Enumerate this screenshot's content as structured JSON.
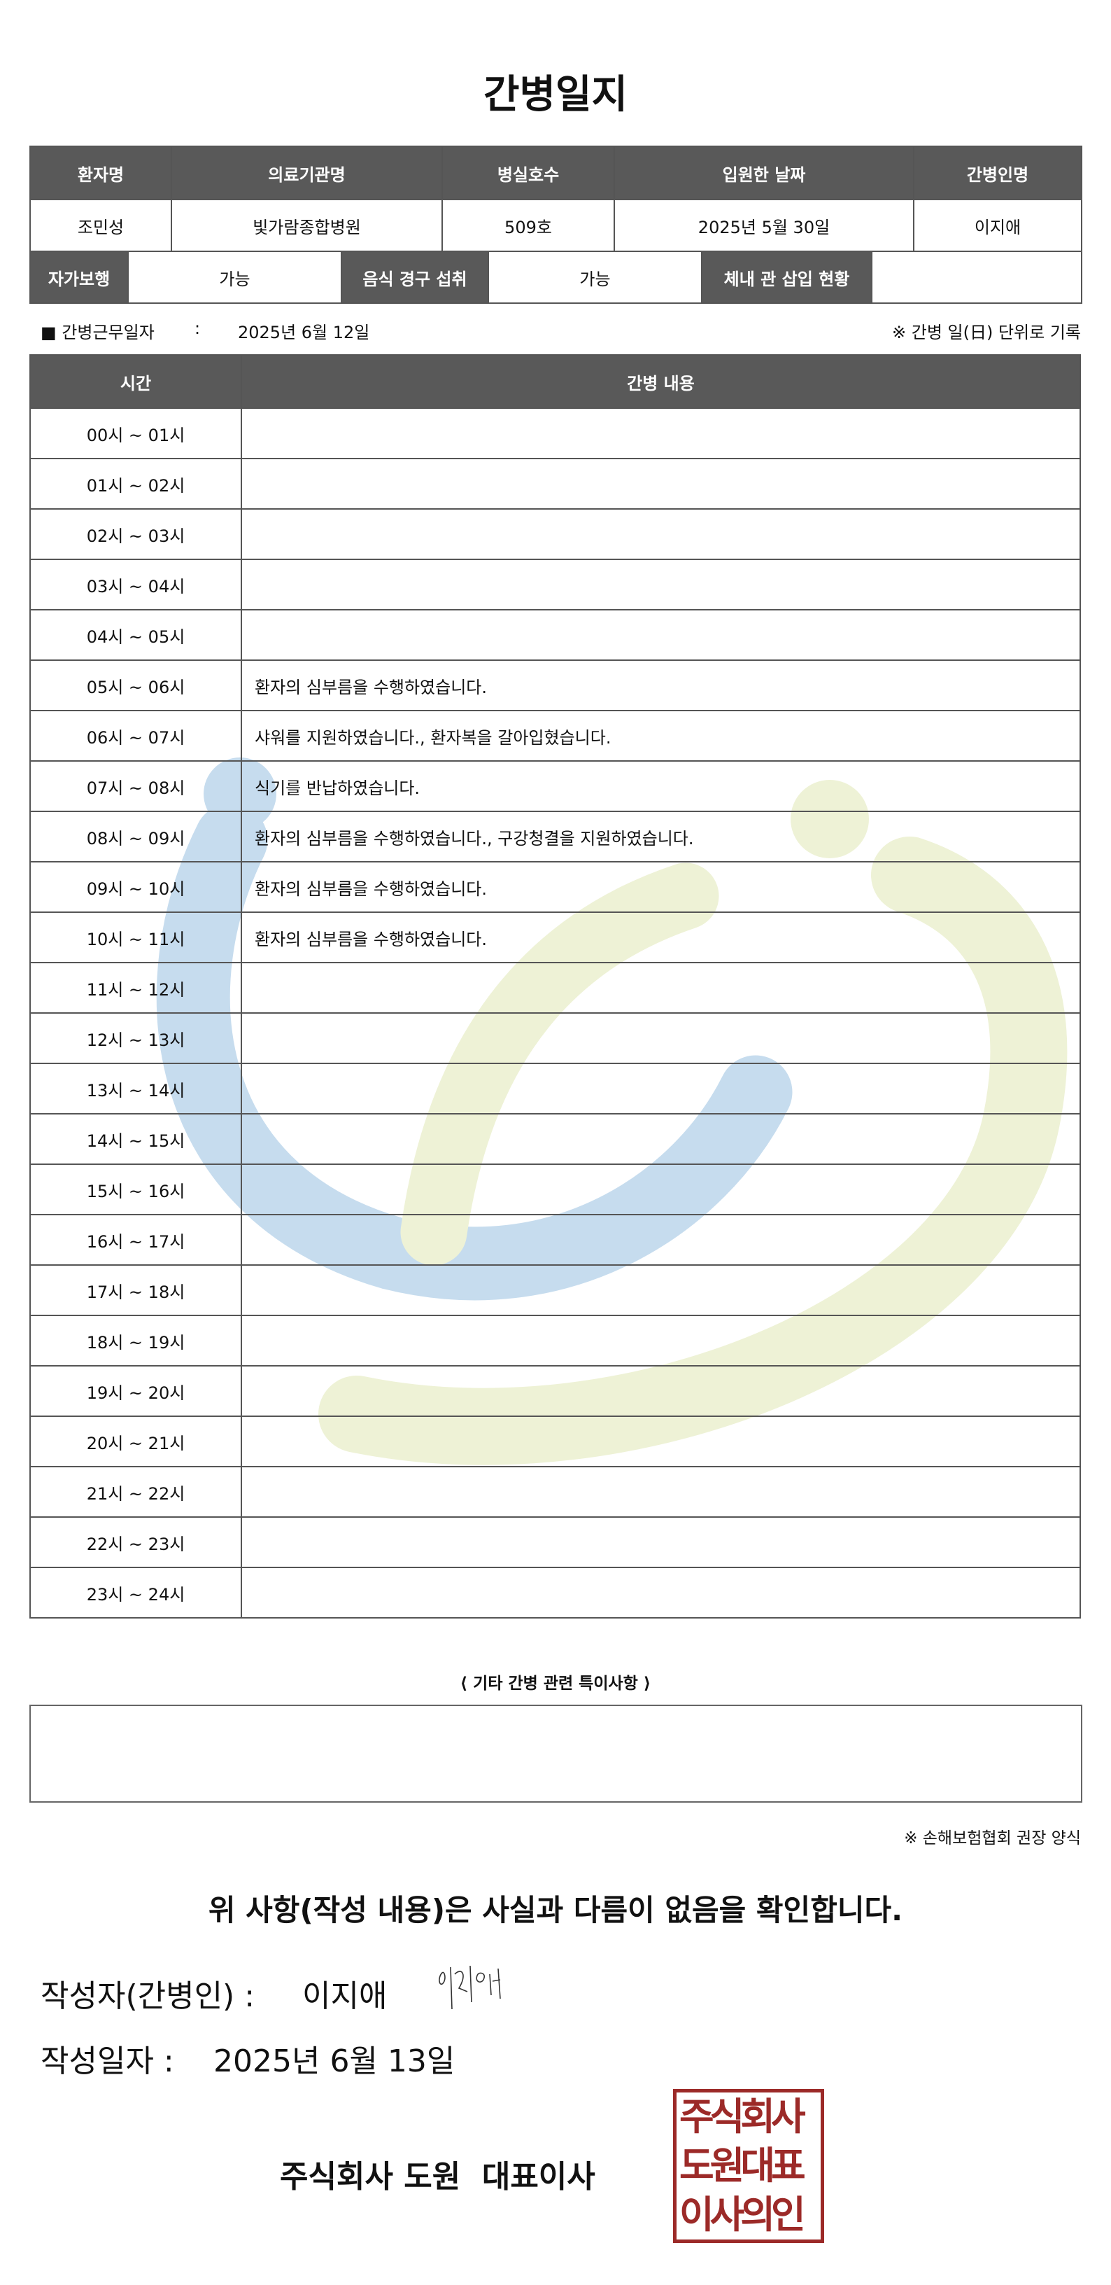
{
  "title": "간병일지",
  "info": {
    "headers": [
      "환자명",
      "의료기관명",
      "병실호수",
      "입원한 날짜",
      "간병인명"
    ],
    "values": [
      "조민성",
      "빛가람종합병원",
      "509호",
      "2025년 5월 30일",
      "이지애"
    ]
  },
  "status": {
    "self_walk_label": "자가보행",
    "self_walk_value": "가능",
    "oral_intake_label": "음식 경구 섭취",
    "oral_intake_value": "가능",
    "tube_label": "체내 관 삽입 현황",
    "tube_value": ""
  },
  "work_date": {
    "label": "■ 간병근무일자",
    "sep": ":",
    "value": "2025년 6월 12일",
    "note": "※ 간병 일(日) 단위로 기록"
  },
  "log": {
    "headers": [
      "시간",
      "간병 내용"
    ],
    "rows": [
      {
        "time": "00시 ~ 01시",
        "content": ""
      },
      {
        "time": "01시 ~ 02시",
        "content": ""
      },
      {
        "time": "02시 ~ 03시",
        "content": ""
      },
      {
        "time": "03시 ~ 04시",
        "content": ""
      },
      {
        "time": "04시 ~ 05시",
        "content": ""
      },
      {
        "time": "05시 ~ 06시",
        "content": "환자의 심부름을 수행하였습니다."
      },
      {
        "time": "06시 ~ 07시",
        "content": "샤워를 지원하였습니다., 환자복을 갈아입혔습니다."
      },
      {
        "time": "07시 ~ 08시",
        "content": "식기를 반납하였습니다."
      },
      {
        "time": "08시 ~ 09시",
        "content": "환자의 심부름을 수행하였습니다., 구강청결을 지원하였습니다."
      },
      {
        "time": "09시 ~ 10시",
        "content": "환자의 심부름을 수행하였습니다."
      },
      {
        "time": "10시 ~ 11시",
        "content": "환자의 심부름을 수행하였습니다."
      },
      {
        "time": "11시 ~ 12시",
        "content": ""
      },
      {
        "time": "12시 ~ 13시",
        "content": ""
      },
      {
        "time": "13시 ~ 14시",
        "content": ""
      },
      {
        "time": "14시 ~ 15시",
        "content": ""
      },
      {
        "time": "15시 ~ 16시",
        "content": ""
      },
      {
        "time": "16시 ~ 17시",
        "content": ""
      },
      {
        "time": "17시 ~ 18시",
        "content": ""
      },
      {
        "time": "18시 ~ 19시",
        "content": ""
      },
      {
        "time": "19시 ~ 20시",
        "content": ""
      },
      {
        "time": "20시 ~ 21시",
        "content": ""
      },
      {
        "time": "21시 ~ 22시",
        "content": ""
      },
      {
        "time": "22시 ~ 23시",
        "content": ""
      },
      {
        "time": "23시 ~ 24시",
        "content": ""
      }
    ]
  },
  "notes": {
    "title": "⟨ 기타 간병 관련 특이사항 ⟩",
    "value": ""
  },
  "form_note": "※ 손해보험협회 권장 양식",
  "confirmation": "위 사항(작성 내용)은 사실과 다름이 없음을 확인합니다.",
  "writer": {
    "label": "작성자(간병인) :",
    "name": "이지애",
    "signature": "이지애"
  },
  "written_date": {
    "label": "작성일자 :",
    "value": "2025년 6월 13일"
  },
  "company": "주식회사 도원  대표이사",
  "seal": {
    "lines": [
      "주식회사",
      "도원대표",
      "이사의인"
    ],
    "color": "#9c2a28"
  },
  "colors": {
    "header_bg": "#595959",
    "watermark_blue": "#c6dcee",
    "watermark_yellow": "#eef2d6"
  }
}
